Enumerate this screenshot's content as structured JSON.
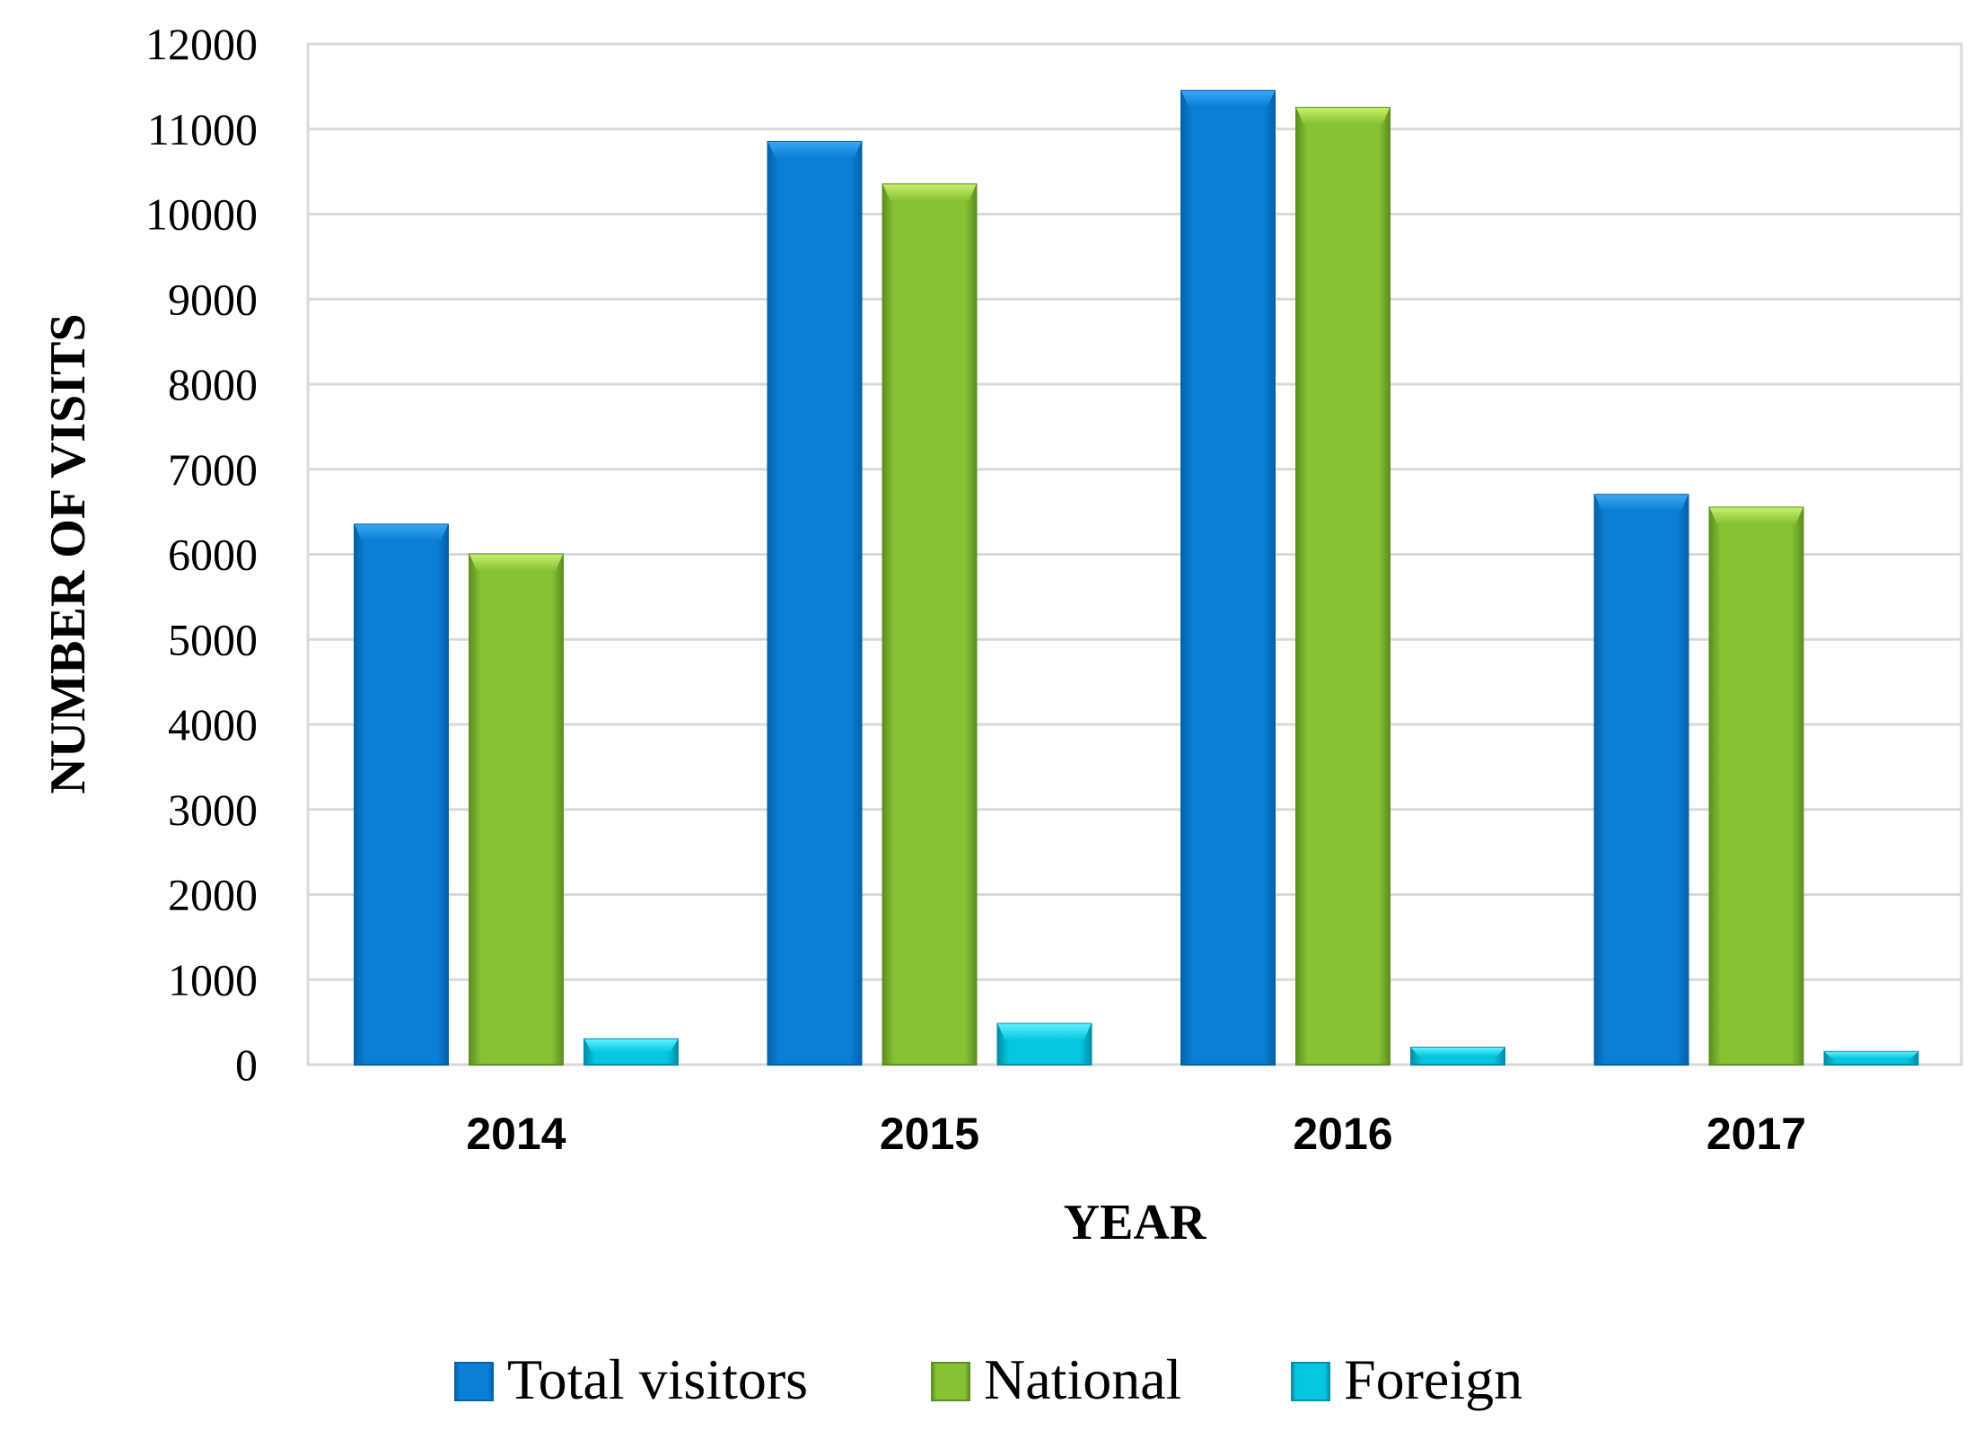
{
  "chart_data": {
    "type": "bar",
    "title": "",
    "xlabel": "YEAR",
    "ylabel": "NUMBER OF VISITS",
    "categories": [
      "2014",
      "2015",
      "2016",
      "2017"
    ],
    "series": [
      {
        "name": "Total visitors",
        "values": [
          6350,
          10850,
          11450,
          6700
        ]
      },
      {
        "name": "National",
        "values": [
          6000,
          10350,
          11250,
          6550
        ]
      },
      {
        "name": "Foreign",
        "values": [
          300,
          480,
          200,
          150
        ]
      }
    ],
    "ylim": [
      0,
      12000
    ],
    "yticks": [
      "0",
      "1000",
      "2000",
      "3000",
      "4000",
      "5000",
      "6000",
      "7000",
      "8000",
      "9000",
      "10000",
      "11000",
      "12000"
    ],
    "grid": true,
    "legend": "bottom",
    "colors": {
      "Total visitors": {
        "top": "#3aa6f0",
        "mid": "#0a7fd6",
        "dark": "#0562a8"
      },
      "National": {
        "top": "#c6ef6a",
        "mid": "#86c234",
        "dark": "#5f8f22"
      },
      "Foreign": {
        "top": "#5ff0ff",
        "mid": "#06c7e0",
        "dark": "#048ea8"
      }
    }
  }
}
